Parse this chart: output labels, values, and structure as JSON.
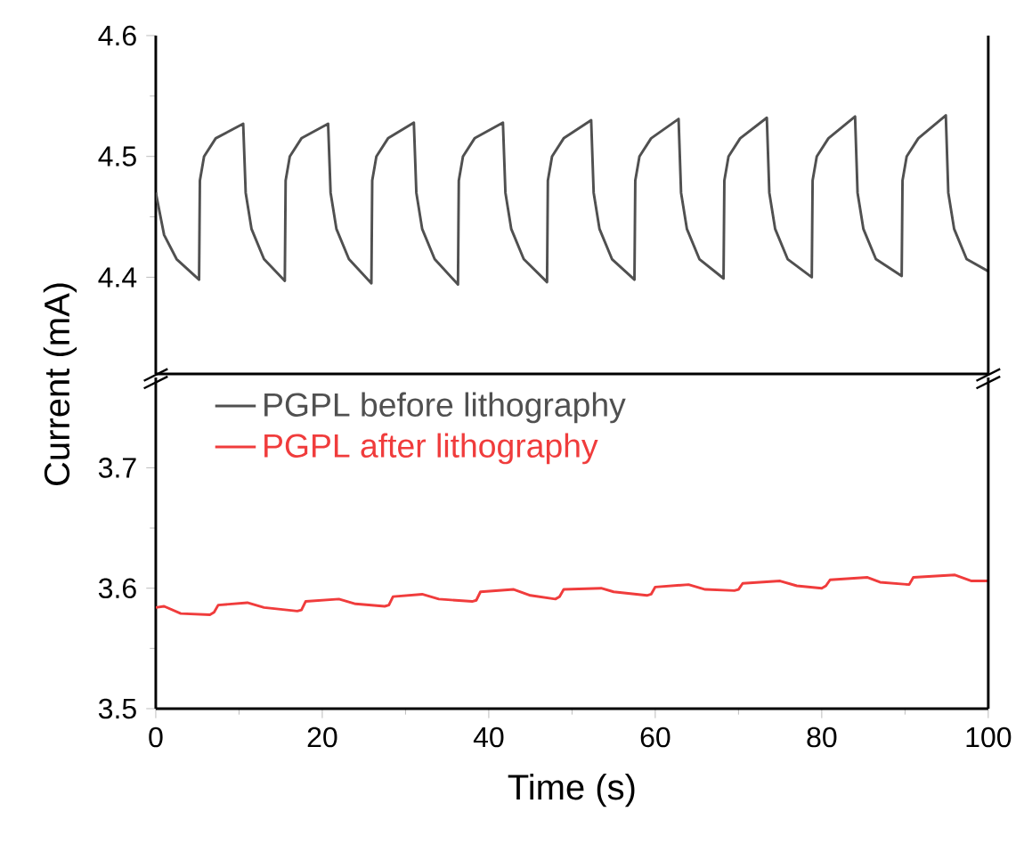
{
  "chart_data": [
    {
      "type": "line",
      "xlim": [
        0,
        100
      ],
      "ylim": [
        4.32,
        4.6
      ],
      "yticks": [
        4.4,
        4.5,
        4.6
      ],
      "tick_labels": "y",
      "legend": "bottom left",
      "marker": "none",
      "line_style": "solid",
      "grid": false,
      "series": [
        {
          "name": "PGPL before lithography",
          "color": "#505050",
          "x": [
            0,
            1,
            2.5,
            5.2,
            5.3,
            5.8,
            7.2,
            10.5,
            10.8,
            11.5,
            13,
            15.5,
            15.6,
            16.1,
            17.5,
            20.7,
            21,
            21.7,
            23.2,
            25.9,
            26,
            26.5,
            27.9,
            31,
            31.3,
            32,
            33.5,
            36.3,
            36.4,
            36.9,
            38.3,
            41.7,
            42,
            42.7,
            44.2,
            47,
            47.1,
            47.6,
            49,
            52.3,
            52.6,
            53.3,
            54.8,
            57.5,
            57.6,
            58.1,
            59.5,
            62.8,
            63.1,
            63.8,
            65.3,
            68.2,
            68.3,
            68.8,
            70.2,
            73.4,
            73.7,
            74.4,
            75.9,
            78.8,
            78.9,
            79.4,
            80.8,
            84,
            84.3,
            85,
            86.5,
            89.6,
            89.7,
            90.2,
            91.6,
            94.9,
            95.2,
            95.9,
            97.4,
            100
          ],
          "values": [
            4.47,
            4.435,
            4.415,
            4.398,
            4.48,
            4.5,
            4.515,
            4.527,
            4.47,
            4.44,
            4.415,
            4.397,
            4.48,
            4.5,
            4.515,
            4.527,
            4.47,
            4.44,
            4.415,
            4.395,
            4.48,
            4.5,
            4.515,
            4.528,
            4.47,
            4.44,
            4.415,
            4.394,
            4.48,
            4.5,
            4.515,
            4.528,
            4.47,
            4.44,
            4.415,
            4.396,
            4.48,
            4.5,
            4.515,
            4.53,
            4.47,
            4.44,
            4.415,
            4.398,
            4.48,
            4.5,
            4.515,
            4.531,
            4.47,
            4.44,
            4.415,
            4.399,
            4.48,
            4.5,
            4.515,
            4.532,
            4.47,
            4.44,
            4.415,
            4.4,
            4.48,
            4.5,
            4.515,
            4.533,
            4.47,
            4.44,
            4.415,
            4.401,
            4.48,
            4.5,
            4.515,
            4.534,
            4.47,
            4.44,
            4.415,
            4.405
          ]
        }
      ]
    },
    {
      "type": "line",
      "xlabel": "Time (s)",
      "ylabel": "Current (mA)",
      "xlim": [
        0,
        100
      ],
      "xticks": [
        0,
        20,
        40,
        60,
        80,
        100
      ],
      "ylim": [
        3.5,
        3.775
      ],
      "yticks": [
        3.5,
        3.6,
        3.7
      ],
      "legend": "top left",
      "marker": "none",
      "line_style": "solid",
      "grid": false,
      "series": [
        {
          "name": "PGPL after lithography",
          "color": "#f03c3c",
          "x": [
            0,
            1,
            3,
            6.5,
            7,
            7.5,
            11,
            13,
            17,
            17.5,
            18,
            22,
            24,
            27.5,
            28,
            28.5,
            32,
            34,
            38,
            38.5,
            39,
            43,
            45,
            48,
            48.5,
            49,
            53.5,
            55,
            59,
            59.5,
            60,
            64,
            66,
            69.5,
            70,
            70.5,
            75,
            77,
            80,
            80.5,
            81,
            85.5,
            87,
            90.5,
            91,
            96,
            98,
            100
          ],
          "values": [
            3.584,
            3.585,
            3.579,
            3.578,
            3.58,
            3.586,
            3.588,
            3.584,
            3.581,
            3.582,
            3.589,
            3.591,
            3.587,
            3.585,
            3.586,
            3.593,
            3.595,
            3.591,
            3.589,
            3.59,
            3.597,
            3.599,
            3.594,
            3.591,
            3.593,
            3.599,
            3.6,
            3.597,
            3.594,
            3.595,
            3.601,
            3.603,
            3.599,
            3.598,
            3.599,
            3.604,
            3.606,
            3.602,
            3.6,
            3.602,
            3.607,
            3.609,
            3.605,
            3.603,
            3.609,
            3.611,
            3.606,
            3.606
          ]
        }
      ]
    }
  ]
}
